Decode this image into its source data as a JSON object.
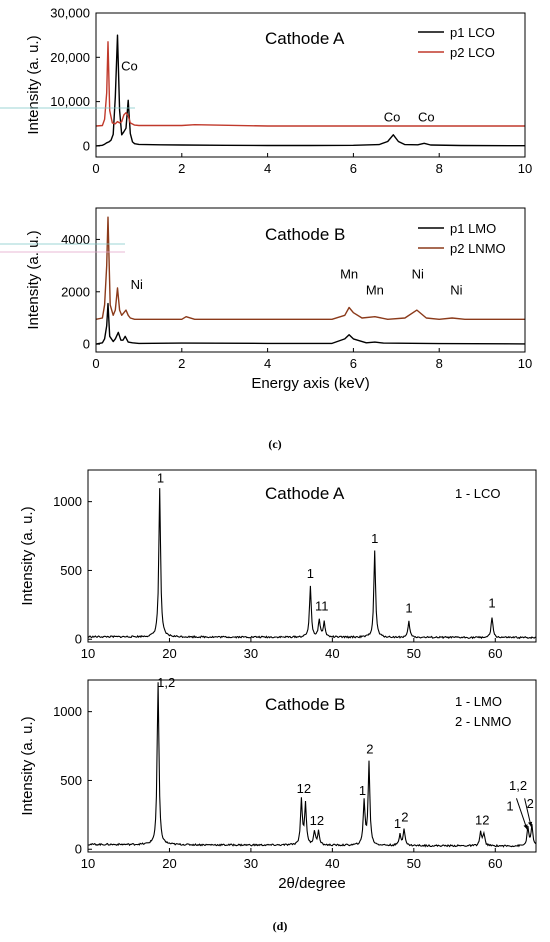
{
  "captions": {
    "c": "(c)",
    "d": "(d)"
  },
  "colors": {
    "black": "#000000",
    "red": "#c0392b",
    "brown": "#8b3a1a"
  },
  "chart_data": [
    {
      "id": "edx-cathode-a",
      "type": "line",
      "title": "Cathode A",
      "xlabel": "",
      "ylabel": "Intensity (a. u.)",
      "xlim": [
        0,
        10
      ],
      "ylim": [
        -2500,
        30000
      ],
      "xticks": [
        0,
        2,
        4,
        6,
        8,
        10
      ],
      "yticks": [
        0,
        10000,
        20000,
        30000
      ],
      "ytick_labels": [
        "0",
        "10,000",
        "20,000",
        "30,000"
      ],
      "legend": "top-right",
      "series": [
        {
          "name": "p1 LCO",
          "color": "#000000",
          "x": [
            0,
            0.15,
            0.2,
            0.25,
            0.3,
            0.35,
            0.4,
            0.45,
            0.5,
            0.55,
            0.6,
            0.65,
            0.7,
            0.75,
            0.8,
            0.85,
            0.9,
            1.0,
            1.5,
            2.0,
            3.0,
            4.0,
            5.0,
            6.0,
            6.6,
            6.8,
            6.93,
            7.05,
            7.2,
            7.5,
            7.65,
            7.8,
            8.5,
            10.0
          ],
          "y": [
            0,
            150,
            400,
            700,
            900,
            1300,
            2600,
            11000,
            25000,
            8000,
            2500,
            3200,
            4000,
            10300,
            2800,
            900,
            500,
            350,
            250,
            200,
            150,
            100,
            100,
            150,
            300,
            1000,
            2500,
            1000,
            300,
            250,
            600,
            200,
            100,
            50
          ]
        },
        {
          "name": "p2 LCO",
          "color": "#c0392b",
          "x": [
            0,
            0.15,
            0.2,
            0.25,
            0.28,
            0.32,
            0.38,
            0.45,
            0.5,
            0.55,
            0.6,
            0.65,
            0.7,
            0.75,
            0.8,
            0.9,
            1.0,
            2.0,
            2.3,
            4.0,
            6.0,
            8.0,
            10.0
          ],
          "y": [
            4500,
            4600,
            6000,
            12000,
            23500,
            8000,
            5200,
            5000,
            5500,
            5200,
            5500,
            7000,
            7500,
            6800,
            5200,
            4700,
            4600,
            4600,
            4800,
            4500,
            4500,
            4500,
            4500
          ]
        }
      ],
      "annotations": [
        {
          "text": "Co",
          "x": 0.78,
          "y": 17000
        },
        {
          "text": "Co",
          "x": 6.9,
          "y": 5500
        },
        {
          "text": "Co",
          "x": 7.7,
          "y": 5500
        }
      ]
    },
    {
      "id": "edx-cathode-b",
      "type": "line",
      "title": "Cathode B",
      "xlabel": "Energy axis (keV)",
      "ylabel": "Intensity (a. u.)",
      "xlim": [
        0,
        10
      ],
      "ylim": [
        -300,
        5200
      ],
      "xticks": [
        0,
        2,
        4,
        6,
        8,
        10
      ],
      "yticks": [
        0,
        2000,
        4000
      ],
      "ytick_labels": [
        "0",
        "2000",
        "4000"
      ],
      "legend": "top-right",
      "series": [
        {
          "name": "p1 LMO",
          "color": "#000000",
          "x": [
            0,
            0.15,
            0.2,
            0.25,
            0.28,
            0.32,
            0.4,
            0.45,
            0.52,
            0.58,
            0.63,
            0.68,
            0.75,
            0.85,
            1.0,
            2.0,
            4.0,
            5.5,
            5.8,
            5.9,
            6.0,
            6.3,
            6.5,
            6.7,
            8.0,
            10.0
          ],
          "y": [
            0,
            50,
            200,
            700,
            1550,
            300,
            100,
            200,
            450,
            150,
            150,
            300,
            80,
            50,
            30,
            40,
            30,
            30,
            200,
            360,
            200,
            50,
            80,
            40,
            20,
            10
          ]
        },
        {
          "name": "p2 LNMO",
          "color": "#8b3a1a",
          "x": [
            0,
            0.15,
            0.2,
            0.25,
            0.28,
            0.33,
            0.4,
            0.45,
            0.5,
            0.55,
            0.6,
            0.65,
            0.7,
            0.75,
            0.8,
            0.9,
            1.0,
            2.0,
            2.1,
            2.3,
            4.0,
            5.5,
            5.8,
            5.9,
            6.0,
            6.2,
            6.5,
            6.8,
            7.2,
            7.48,
            7.7,
            8.0,
            8.3,
            8.6,
            10.0
          ],
          "y": [
            950,
            1000,
            1500,
            3000,
            4850,
            1500,
            1100,
            1300,
            2150,
            1300,
            1100,
            1200,
            1300,
            1100,
            1000,
            950,
            950,
            950,
            1050,
            950,
            950,
            950,
            1100,
            1400,
            1200,
            1000,
            1050,
            950,
            1000,
            1300,
            1000,
            950,
            1000,
            950,
            950
          ]
        }
      ],
      "annotations": [
        {
          "text": "Ni",
          "x": 0.95,
          "y": 2100
        },
        {
          "text": "Mn",
          "x": 5.9,
          "y": 2500
        },
        {
          "text": "Mn",
          "x": 6.5,
          "y": 1900
        },
        {
          "text": "Ni",
          "x": 7.5,
          "y": 2500
        },
        {
          "text": "Ni",
          "x": 8.4,
          "y": 1900
        }
      ]
    },
    {
      "id": "xrd-cathode-a",
      "type": "line",
      "title": "Cathode A",
      "xlabel": "",
      "ylabel": "Intensity (a. u.)",
      "xlim": [
        10,
        65
      ],
      "ylim": [
        -20,
        1230
      ],
      "xticks": [
        10,
        20,
        30,
        40,
        50,
        60
      ],
      "yticks": [
        0,
        500,
        1000
      ],
      "ytick_labels": [
        "0",
        "500",
        "1000"
      ],
      "legend_text": "1 - LCO",
      "background": 18,
      "peaks": [
        {
          "x": 18.8,
          "y": 1080,
          "label": "1"
        },
        {
          "x": 37.3,
          "y": 370,
          "label": "1"
        },
        {
          "x": 38.4,
          "y": 130,
          "label": "1"
        },
        {
          "x": 39.0,
          "y": 110,
          "label": "1"
        },
        {
          "x": 45.2,
          "y": 625,
          "label": "1"
        },
        {
          "x": 49.4,
          "y": 115,
          "label": "1"
        },
        {
          "x": 59.6,
          "y": 150,
          "label": "1"
        }
      ],
      "label_positions": [
        {
          "text": "1",
          "x": 18.9,
          "y": 1140
        },
        {
          "text": "1",
          "x": 37.3,
          "y": 445
        },
        {
          "text": "11",
          "x": 38.7,
          "y": 210
        },
        {
          "text": "1",
          "x": 45.2,
          "y": 700
        },
        {
          "text": "1",
          "x": 49.4,
          "y": 195
        },
        {
          "text": "1",
          "x": 59.6,
          "y": 230
        }
      ]
    },
    {
      "id": "xrd-cathode-b",
      "type": "line",
      "title": "Cathode B",
      "xlabel": "2θ/degree",
      "ylabel": "Intensity (a. u.)",
      "xlim": [
        10,
        65
      ],
      "ylim": [
        -20,
        1230
      ],
      "xticks": [
        10,
        20,
        30,
        40,
        50,
        60
      ],
      "yticks": [
        0,
        500,
        1000
      ],
      "ytick_labels": [
        "0",
        "500",
        "1000"
      ],
      "legend_lines": [
        "1 - LMO",
        "2 - LNMO"
      ],
      "background": 35,
      "peaks": [
        {
          "x": 18.6,
          "y": 1180,
          "label": "1,2"
        },
        {
          "x": 36.2,
          "y": 330,
          "label": "1"
        },
        {
          "x": 36.7,
          "y": 300,
          "label": "2"
        },
        {
          "x": 37.8,
          "y": 100,
          "label": "1"
        },
        {
          "x": 38.3,
          "y": 100,
          "label": "2"
        },
        {
          "x": 43.9,
          "y": 320,
          "label": "1"
        },
        {
          "x": 44.5,
          "y": 600,
          "label": "2"
        },
        {
          "x": 48.3,
          "y": 80,
          "label": "1"
        },
        {
          "x": 48.8,
          "y": 120,
          "label": "2"
        },
        {
          "x": 58.2,
          "y": 100,
          "label": "1"
        },
        {
          "x": 58.6,
          "y": 90,
          "label": "2"
        },
        {
          "x": 64.0,
          "y": 130,
          "label": "1"
        },
        {
          "x": 64.5,
          "y": 150,
          "label": "2"
        }
      ],
      "label_positions": [
        {
          "text": "1,2",
          "x": 19.6,
          "y": 1180
        },
        {
          "text": "12",
          "x": 36.5,
          "y": 410
        },
        {
          "text": "12",
          "x": 38.1,
          "y": 175
        },
        {
          "text": "1",
          "x": 43.7,
          "y": 395
        },
        {
          "text": "2",
          "x": 44.6,
          "y": 695
        },
        {
          "text": "1",
          "x": 48.0,
          "y": 155
        },
        {
          "text": "2",
          "x": 48.9,
          "y": 200
        },
        {
          "text": "12",
          "x": 58.4,
          "y": 180
        },
        {
          "text": "1,2",
          "x": 62.8,
          "y": 430
        },
        {
          "text": "1",
          "x": 61.8,
          "y": 280
        },
        {
          "text": "2",
          "x": 64.3,
          "y": 300
        }
      ],
      "arrows": [
        {
          "from": [
            62.6,
            370
          ],
          "to": [
            63.9,
            145
          ]
        },
        {
          "from": [
            63.6,
            370
          ],
          "to": [
            64.4,
            165
          ]
        }
      ]
    }
  ]
}
